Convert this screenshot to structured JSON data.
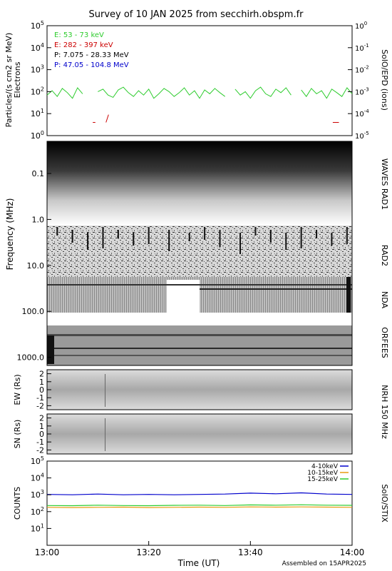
{
  "title": "Survey of 10 JAN 2025 from secchirh.obspm.fr",
  "footer": "Assembled on 15APR2025",
  "colors": {
    "green": "#2ecc2e",
    "red": "#cc0000",
    "black": "#000000",
    "blue": "#0000cc",
    "orange": "#e89a10"
  },
  "chart_data": [
    {
      "type": "line",
      "panel": "SolO/EPD",
      "ylabel_left": "Particles/(s cm2 sr MeV)",
      "ylabel_left2": "Electrons",
      "ylabel_right": "SolO/EPD (ions)",
      "yscale": "log",
      "ylim": [
        1,
        100000
      ],
      "yticks_left": [
        "10^0",
        "10^1",
        "10^2",
        "10^3",
        "10^4",
        "10^5"
      ],
      "ylim_right": [
        1e-05,
        1
      ],
      "yticks_right": [
        "10^-5",
        "10^-4",
        "10^-3",
        "10^-2",
        "10^-1",
        "10^0"
      ],
      "xlim": [
        "13:00",
        "14:00"
      ],
      "legend": [
        {
          "label": "E: 53 - 73 keV",
          "color": "#2ecc2e"
        },
        {
          "label": "E: 282 - 397 keV",
          "color": "#cc0000"
        },
        {
          "label": "P: 7.075 - 28.33 MeV",
          "color": "#000000"
        },
        {
          "label": "P: 47.05 - 104.8 MeV",
          "color": "#0000cc"
        }
      ],
      "series": [
        {
          "name": "E: 53 - 73 keV",
          "x": [
            0,
            1,
            2,
            3,
            4,
            5,
            6,
            7,
            8,
            9,
            10,
            11,
            12,
            13,
            14,
            15,
            16,
            17,
            18,
            19,
            20,
            21,
            22,
            23,
            24,
            25,
            26,
            27,
            28,
            29,
            30,
            31,
            32,
            33,
            34,
            35,
            36,
            37,
            38,
            39,
            40,
            41,
            42,
            43,
            44,
            45,
            46,
            47,
            48,
            49,
            50,
            51,
            52,
            53,
            54,
            55,
            56,
            57,
            58,
            59,
            60
          ],
          "y": [
            70,
            110,
            60,
            140,
            90,
            50,
            150,
            80,
            null,
            null,
            100,
            130,
            70,
            55,
            120,
            160,
            90,
            60,
            110,
            70,
            130,
            50,
            80,
            140,
            100,
            60,
            90,
            150,
            70,
            110,
            50,
            120,
            80,
            140,
            90,
            60,
            null,
            130,
            70,
            100,
            50,
            110,
            160,
            80,
            60,
            130,
            90,
            150,
            70,
            null,
            120,
            60,
            140,
            80,
            110,
            50,
            130,
            90,
            60,
            150,
            80
          ]
        },
        {
          "name": "E: 282 - 397 keV",
          "x": [
            9.0,
            9.5,
            null,
            11.6,
            12.1,
            null,
            56.2,
            57.4
          ],
          "y": [
            4,
            4,
            null,
            4,
            9,
            null,
            4,
            4
          ]
        }
      ]
    },
    {
      "type": "heatmap",
      "panel": "WAVES RAD1 / RAD2 / NDA / ORFEES",
      "ylabel": "Frequency (MHz)",
      "yscale": "log",
      "ylim": [
        0.02,
        1500
      ],
      "yticks": [
        "0.1",
        "1.0",
        "10.0",
        "100.0",
        "1000.0"
      ],
      "xlim": [
        "13:00",
        "14:00"
      ],
      "band_labels": [
        "WAVES RAD1",
        "RAD2",
        "NDA",
        "ORFEES"
      ]
    },
    {
      "type": "heatmap",
      "panel": "NRH 150 MHz EW",
      "ylabel": "EW (Rs)",
      "ylim": [
        -2.5,
        2.5
      ],
      "yticks": [
        "-2",
        "-1",
        "0",
        "1",
        "2"
      ],
      "xlim": [
        "13:00",
        "14:00"
      ],
      "label": "NRH 150 MHz"
    },
    {
      "type": "heatmap",
      "panel": "NRH 150 MHz SN",
      "ylabel": "SN (Rs)",
      "ylim": [
        -2.5,
        2.5
      ],
      "yticks": [
        "-2",
        "-1",
        "0",
        "1",
        "2"
      ],
      "xlim": [
        "13:00",
        "14:00"
      ]
    },
    {
      "type": "line",
      "panel": "SolO/STIX",
      "ylabel": "COUNTS",
      "ylabel_right": "SolO/STIX",
      "yscale": "log",
      "ylim": [
        1,
        100000
      ],
      "yticks": [
        "10^1",
        "10^2",
        "10^3",
        "10^4",
        "10^5"
      ],
      "xlabel": "Time (UT)",
      "xticks": [
        "13:00",
        "13:20",
        "13:40",
        "14:00"
      ],
      "xlim": [
        "13:00",
        "14:00"
      ],
      "legend": [
        {
          "label": "4-10keV",
          "color": "#0000cc"
        },
        {
          "label": "10-15keV",
          "color": "#e89a10"
        },
        {
          "label": "15-25keV",
          "color": "#2ecc2e"
        }
      ],
      "series": [
        {
          "name": "4-10keV",
          "x": [
            0,
            5,
            10,
            15,
            20,
            25,
            30,
            35,
            40,
            45,
            50,
            55,
            60
          ],
          "y": [
            1050,
            1000,
            1100,
            1000,
            1050,
            1000,
            1050,
            1100,
            1250,
            1150,
            1300,
            1100,
            1050
          ]
        },
        {
          "name": "10-15keV",
          "x": [
            0,
            5,
            10,
            15,
            20,
            25,
            30,
            35,
            40,
            45,
            50,
            55,
            60
          ],
          "y": [
            180,
            175,
            180,
            185,
            175,
            180,
            185,
            180,
            190,
            185,
            190,
            185,
            180
          ]
        },
        {
          "name": "15-25keV",
          "x": [
            0,
            5,
            10,
            15,
            20,
            25,
            30,
            35,
            40,
            45,
            50,
            55,
            60
          ],
          "y": [
            230,
            225,
            240,
            230,
            225,
            235,
            240,
            230,
            250,
            240,
            255,
            240,
            235
          ]
        }
      ]
    }
  ]
}
